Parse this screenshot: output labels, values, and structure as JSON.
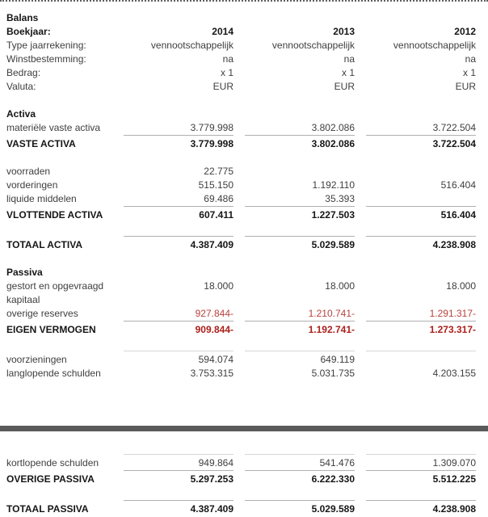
{
  "colors": {
    "text": "#3e3e3e",
    "bold_text": "#161616",
    "negative_value": "#b8423c",
    "negative_value_bold": "#ab1f1a",
    "total_rule": "#b0b0b0",
    "light_rule": "#d7d7d7",
    "divider_bar": "#5a5a5a"
  },
  "tables": [
    {
      "name": "balans-upper",
      "rows": [
        {
          "type": "title",
          "label": "Balans"
        },
        {
          "type": "data",
          "label": "Boekjaar:",
          "style": "bold",
          "values": [
            "2014",
            "2013",
            "2012"
          ]
        },
        {
          "type": "data",
          "label": "Type jaarrekening:",
          "values": [
            "vennootschappelijk",
            "vennootschappelijk",
            "vennootschappelijk"
          ]
        },
        {
          "type": "data",
          "label": "Winstbestemming:",
          "values": [
            "na",
            "na",
            "na"
          ]
        },
        {
          "type": "data",
          "label": "Bedrag:",
          "values": [
            "x 1",
            "x 1",
            "x 1"
          ]
        },
        {
          "type": "data",
          "label": "Valuta:",
          "values": [
            "EUR",
            "EUR",
            "EUR"
          ]
        },
        {
          "type": "spacer"
        },
        {
          "type": "title",
          "label": "Activa"
        },
        {
          "type": "data",
          "label": "materiële vaste activa",
          "values": [
            "3.779.998",
            "3.802.086",
            "3.722.504"
          ]
        },
        {
          "type": "data",
          "label": "VASTE ACTIVA",
          "style": "bold",
          "rule": "dark",
          "values": [
            "3.779.998",
            "3.802.086",
            "3.722.504"
          ]
        },
        {
          "type": "spacer"
        },
        {
          "type": "data",
          "label": "voorraden",
          "values": [
            "22.775",
            "",
            ""
          ]
        },
        {
          "type": "data",
          "label": "vorderingen",
          "values": [
            "515.150",
            "1.192.110",
            "516.404"
          ]
        },
        {
          "type": "data",
          "label": "liquide middelen",
          "values": [
            "69.486",
            "35.393",
            ""
          ]
        },
        {
          "type": "data",
          "label": "VLOTTENDE ACTIVA",
          "style": "bold",
          "rule": "dark",
          "values": [
            "607.411",
            "1.227.503",
            "516.404"
          ]
        },
        {
          "type": "spacer"
        },
        {
          "type": "data",
          "label": "TOTAAL ACTIVA",
          "style": "bold",
          "rule": "dark",
          "values": [
            "4.387.409",
            "5.029.589",
            "4.238.908"
          ]
        },
        {
          "type": "spacer"
        },
        {
          "type": "title",
          "label": "Passiva"
        },
        {
          "type": "data",
          "label": "gestort en opgevraagd kapitaal",
          "values": [
            "18.000",
            "18.000",
            "18.000"
          ]
        },
        {
          "type": "data",
          "label": "overige reserves",
          "red_values": true,
          "values": [
            "927.844-",
            "1.210.741-",
            "1.291.317-"
          ]
        },
        {
          "type": "data",
          "label": "EIGEN VERMOGEN",
          "style": "bold",
          "red_values": true,
          "rule": "dark",
          "values": [
            "909.844-",
            "1.192.741-",
            "1.273.317-"
          ]
        },
        {
          "type": "spacer"
        },
        {
          "type": "data",
          "label": "voorzieningen",
          "rule": "light",
          "values": [
            "594.074",
            "649.119",
            ""
          ]
        },
        {
          "type": "data",
          "label": "langlopende schulden",
          "values": [
            "3.753.315",
            "5.031.735",
            "4.203.155"
          ]
        }
      ]
    },
    {
      "name": "balans-lower",
      "rows": [
        {
          "type": "data",
          "label": "kortlopende schulden",
          "rule": "light",
          "values": [
            "949.864",
            "541.476",
            "1.309.070"
          ]
        },
        {
          "type": "data",
          "label": "OVERIGE PASSIVA",
          "style": "bold",
          "rule": "dark",
          "values": [
            "5.297.253",
            "6.222.330",
            "5.512.225"
          ]
        },
        {
          "type": "spacer"
        },
        {
          "type": "data",
          "label": "TOTAAL PASSIVA",
          "style": "bold",
          "rule": "dark",
          "values": [
            "4.387.409",
            "5.029.589",
            "4.238.908"
          ]
        }
      ]
    }
  ]
}
